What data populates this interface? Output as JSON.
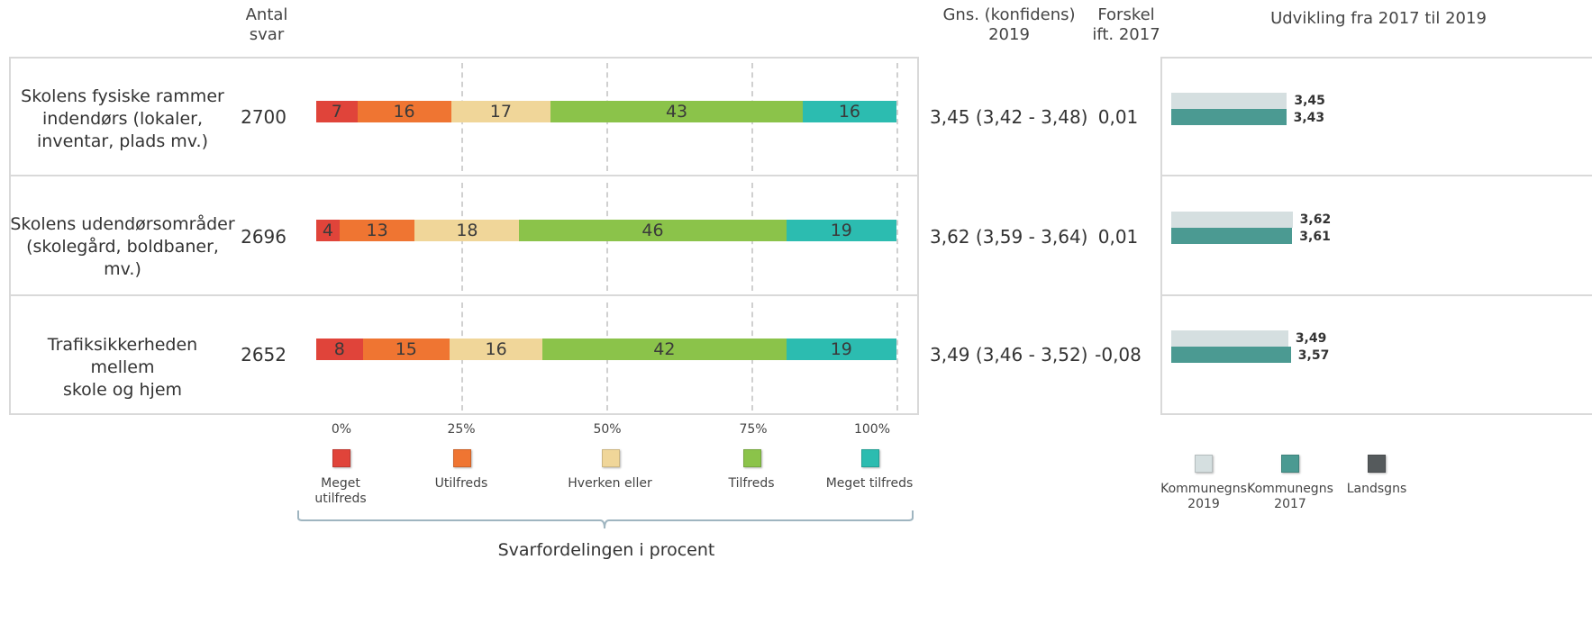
{
  "headers": {
    "antal_svar": "Antal\nsvar",
    "gns": "Gns. (konfidens)\n2019",
    "forskel": "Forskel\nift. 2017",
    "udvikling": "Udvikling fra 2017 til 2019"
  },
  "colors": {
    "meget_utilfreds": "#e0443a",
    "utilfreds": "#ef7532",
    "hverken": "#f0d699",
    "tilfreds": "#8bc34a",
    "meget_tilfreds": "#2cbcb0",
    "kommune_2019": "#d5dfe0",
    "kommune_2017": "#4b9a92",
    "landsgns": "#555a5c"
  },
  "chart_data": {
    "type": "bar",
    "stacked": true,
    "orientation": "horizontal",
    "xlim": [
      0,
      100
    ],
    "categories": [
      "Skolens fysiske rammer indendørs (lokaler, inventar, plads mv.)",
      "Skolens udendørsområder (skolegård, boldbaner, mv.)",
      "Trafiksikkerheden mellem skole og hjem"
    ],
    "series": [
      {
        "name": "Meget utilfreds",
        "values": [
          7,
          4,
          8
        ]
      },
      {
        "name": "Utilfreds",
        "values": [
          16,
          13,
          15
        ]
      },
      {
        "name": "Hverken eller",
        "values": [
          17,
          18,
          16
        ]
      },
      {
        "name": "Tilfreds",
        "values": [
          43,
          46,
          42
        ]
      },
      {
        "name": "Meget tilfreds",
        "values": [
          16,
          19,
          19
        ]
      }
    ],
    "x_ticks": [
      "0%",
      "25%",
      "50%",
      "75%",
      "100%"
    ],
    "xlabel": "Svarfordelingen i procent"
  },
  "rows": [
    {
      "label": "Skolens fysiske rammer\nindendørs (lokaler,\ninventar, plads mv.)",
      "count": "2700",
      "mean": "3,45 (3,42 - 3,48)",
      "diff": "0,01"
    },
    {
      "label": "Skolens udendørsområder\n(skolegård, boldbaner, mv.)",
      "count": "2696",
      "mean": "3,62 (3,59 - 3,64)",
      "diff": "0,01"
    },
    {
      "label": "Trafiksikkerheden mellem\nskole og hjem",
      "count": "2652",
      "mean": "3,49 (3,46 - 3,52)",
      "diff": "-0,08"
    }
  ],
  "development": {
    "scale_max": 4,
    "rows": [
      {
        "k2019": 3.45,
        "k2017": 3.43,
        "k2019_label": "3,45",
        "k2017_label": "3,43"
      },
      {
        "k2019": 3.62,
        "k2017": 3.61,
        "k2019_label": "3,62",
        "k2017_label": "3,61"
      },
      {
        "k2019": 3.49,
        "k2017": 3.57,
        "k2019_label": "3,49",
        "k2017_label": "3,57"
      }
    ]
  },
  "legend": {
    "main": [
      "Meget\nutilfreds",
      "Utilfreds",
      "Hverken eller",
      "Tilfreds",
      "Meget tilfreds"
    ],
    "development": [
      "Kommunegns\n2019",
      "Kommunegns\n2017",
      "Landsgns"
    ]
  }
}
